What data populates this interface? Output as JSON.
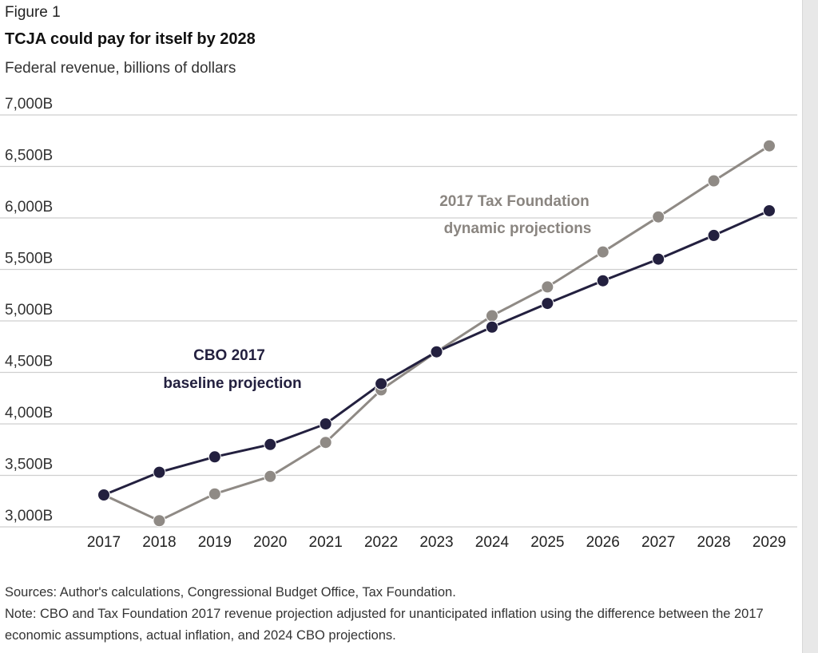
{
  "figure_label": "Figure 1",
  "chart_data": {
    "type": "line",
    "title": "TCJA could pay for itself by 2028",
    "subtitle": "Federal revenue, billions of dollars",
    "x": [
      "2017",
      "2018",
      "2019",
      "2020",
      "2021",
      "2022",
      "2023",
      "2024",
      "2025",
      "2026",
      "2027",
      "2028",
      "2029"
    ],
    "y_ticks": [
      "7,000B",
      "6,500B",
      "6,000B",
      "5,500B",
      "5,000B",
      "4,500B",
      "4,000B",
      "3,500B",
      "3,000B"
    ],
    "y_tick_values": [
      7000,
      6500,
      6000,
      5500,
      5000,
      4500,
      4000,
      3500,
      3000
    ],
    "ylim": [
      3000,
      7000
    ],
    "grid": "horizontal",
    "series": [
      {
        "label_lines": [
          "CBO 2017",
          "baseline projection"
        ],
        "color": "#23203f",
        "values": [
          3310,
          3530,
          3680,
          3800,
          4000,
          4390,
          4700,
          4940,
          5170,
          5390,
          5600,
          5830,
          6070
        ]
      },
      {
        "label_lines": [
          "2017 Tax Foundation",
          "dynamic projections"
        ],
        "color": "#8f8a85",
        "values": [
          3310,
          3060,
          3320,
          3490,
          3820,
          4330,
          4700,
          5050,
          5330,
          5670,
          6010,
          6360,
          6700
        ]
      }
    ]
  },
  "notes": {
    "sources": "Sources: Author's calculations, Congressional Budget Office, Tax Foundation.",
    "note": "Note: CBO and Tax Foundation 2017 revenue projection adjusted for unanticipated inflation using the difference between the 2017 economic assumptions, actual inflation, and 2024 CBO projections."
  }
}
